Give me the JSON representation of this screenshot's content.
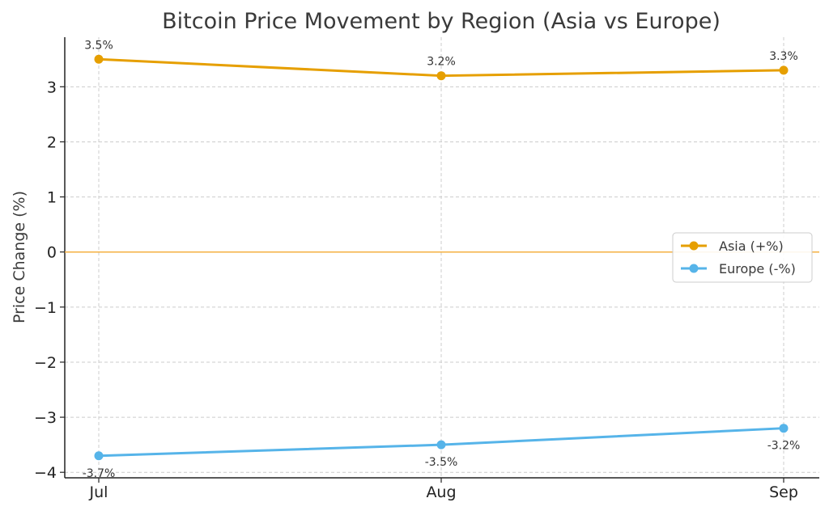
{
  "chart_data": {
    "type": "line",
    "title": "Bitcoin Price Movement by Region (Asia vs Europe)",
    "xlabel": "",
    "ylabel": "Price Change (%)",
    "categories": [
      "Jul",
      "Aug",
      "Sep"
    ],
    "ylim": [
      -4.1,
      3.9
    ],
    "yticks": [
      -4,
      -3,
      -2,
      -1,
      0,
      1,
      2,
      3
    ],
    "ytick_labels": [
      "−4",
      "−3",
      "−2",
      "−1",
      "0",
      "1",
      "2",
      "3"
    ],
    "grid": true,
    "legend_position": "center-right",
    "zero_line_color": "#f5b041",
    "series": [
      {
        "name": "Asia (+%)",
        "values": [
          3.5,
          3.2,
          3.3
        ],
        "labels": [
          "3.5%",
          "3.2%",
          "3.3%"
        ],
        "label_position": "above",
        "color": "#e69f00"
      },
      {
        "name": "Europe (-%)",
        "values": [
          -3.7,
          -3.5,
          -3.2
        ],
        "labels": [
          "-3.7%",
          "-3.5%",
          "-3.2%"
        ],
        "label_position": "below",
        "color": "#56b4e9"
      }
    ]
  }
}
